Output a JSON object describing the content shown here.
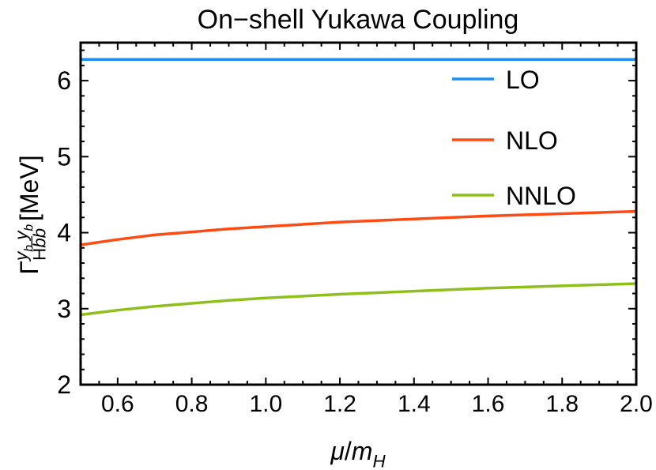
{
  "chart_data": {
    "type": "line",
    "title": "On−shell Yukawa Coupling",
    "xlabel": "μ/m_H",
    "ylabel": "Γ^{y_b y_b}_{Hb̅b} [MeV]",
    "ylabel_parts": {
      "gamma": "Γ",
      "sup": "y",
      "sub": "b",
      "lower": "H",
      "b": "b",
      "unit": "[MeV]"
    },
    "xlabel_parts": {
      "mu": "μ",
      "slash": "/",
      "m": "m",
      "sub": "H"
    },
    "xlim": [
      0.5,
      2.0
    ],
    "ylim": [
      2,
      6.5
    ],
    "xticks": [
      "0.6",
      "0.8",
      "1.0",
      "1.2",
      "1.4",
      "1.6",
      "1.8",
      "2.0"
    ],
    "yticks": [
      "2",
      "3",
      "4",
      "5",
      "6"
    ],
    "grid": false,
    "legend_position": "top-right",
    "series": [
      {
        "name": "LO",
        "color": "#1f8ef1",
        "x": [
          0.5,
          2.0
        ],
        "y": [
          6.28,
          6.28
        ]
      },
      {
        "name": "NLO",
        "color": "#ff4a14",
        "x": [
          0.5,
          0.6,
          0.7,
          0.8,
          0.9,
          1.0,
          1.2,
          1.4,
          1.6,
          1.8,
          2.0
        ],
        "y": [
          3.84,
          3.91,
          3.97,
          4.01,
          4.05,
          4.08,
          4.14,
          4.18,
          4.22,
          4.25,
          4.28
        ]
      },
      {
        "name": "NNLO",
        "color": "#8fbf1a",
        "x": [
          0.5,
          0.6,
          0.7,
          0.8,
          0.9,
          1.0,
          1.2,
          1.4,
          1.6,
          1.8,
          2.0
        ],
        "y": [
          2.92,
          2.98,
          3.03,
          3.07,
          3.11,
          3.14,
          3.19,
          3.23,
          3.27,
          3.3,
          3.33
        ]
      }
    ]
  }
}
